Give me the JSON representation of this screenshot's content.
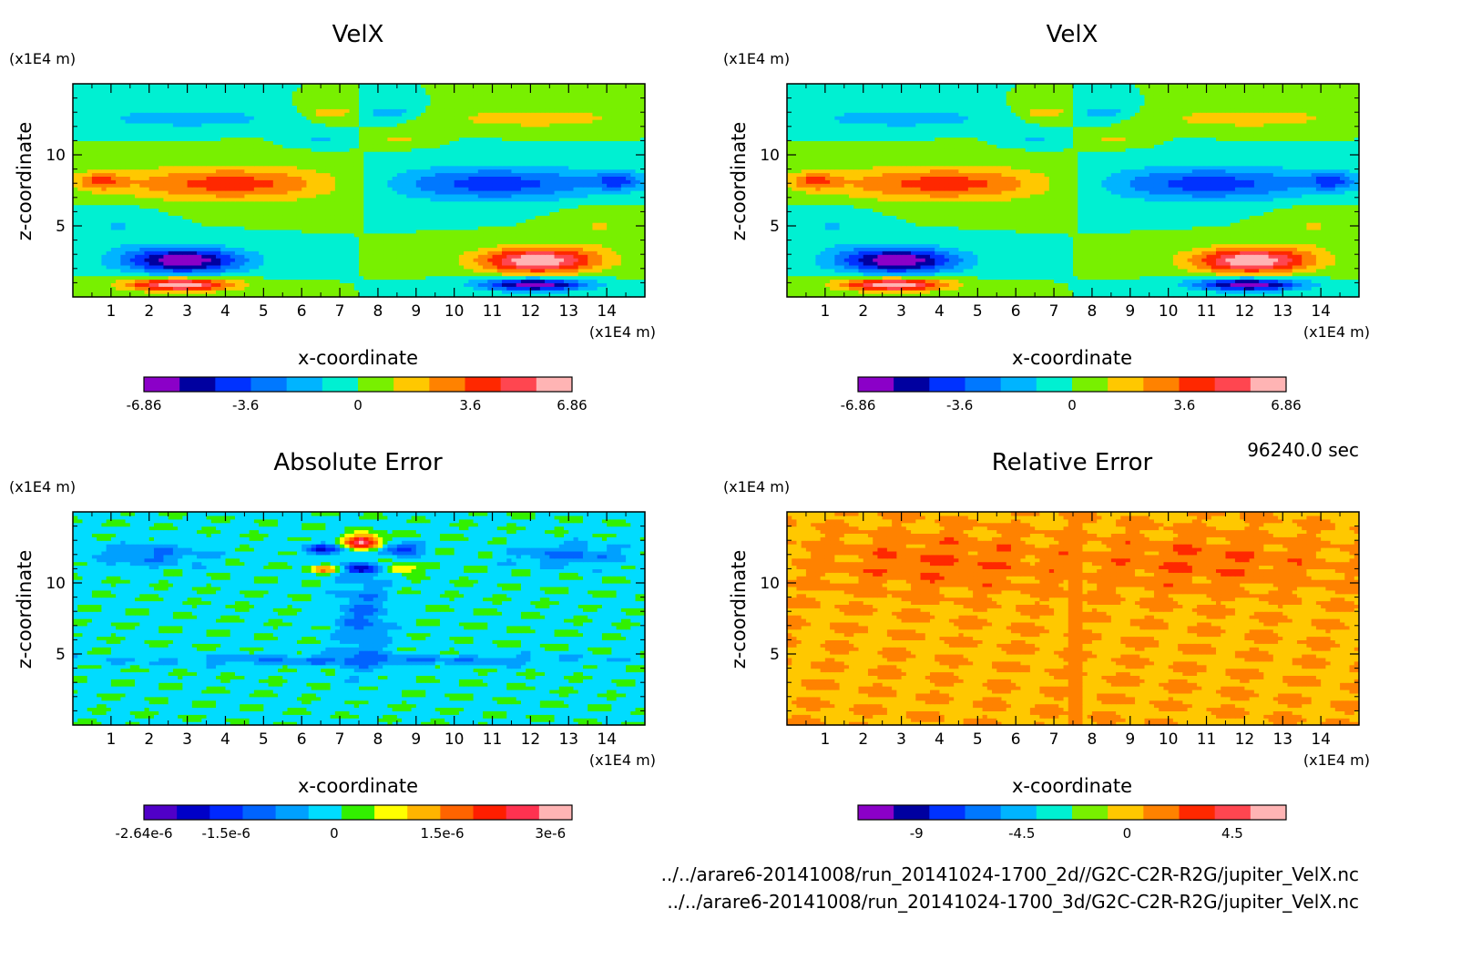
{
  "time_label": "96240.0 sec",
  "footer": {
    "line1": "../../arare6-20141008/run_20141024-1700_2d//G2C-C2R-R2G/jupiter_VelX.nc",
    "line2": "../../arare6-20141008/run_20141024-1700_3d/G2C-C2R-R2G/jupiter_VelX.nc"
  },
  "chart_data": [
    {
      "type": "heatmap",
      "title": "VelX",
      "xlabel": "x-coordinate",
      "ylabel": "z-coordinate",
      "x_unit": "(x1E4 m)",
      "y_unit": "(x1E4 m)",
      "xlim": [
        0,
        15
      ],
      "ylim": [
        0,
        15
      ],
      "x_ticks": [
        "1",
        "2",
        "3",
        "4",
        "5",
        "6",
        "7",
        "8",
        "9",
        "10",
        "11",
        "12",
        "13",
        "14"
      ],
      "y_ticks": [
        "5",
        "10"
      ],
      "colorbar": {
        "colors": [
          "#8b00c8",
          "#0000a0",
          "#0032ff",
          "#0078ff",
          "#00b4ff",
          "#00f0d2",
          "#78f000",
          "#ffc800",
          "#ff8200",
          "#ff2800",
          "#ff4650",
          "#ffb4b4"
        ],
        "labels": [
          "-6.86",
          "-3.6",
          "0",
          "3.6",
          "6.86"
        ]
      },
      "field": "velx"
    },
    {
      "type": "heatmap",
      "title": "VelX",
      "xlabel": "x-coordinate",
      "ylabel": "z-coordinate",
      "x_unit": "(x1E4 m)",
      "y_unit": "(x1E4 m)",
      "xlim": [
        0,
        15
      ],
      "ylim": [
        0,
        15
      ],
      "x_ticks": [
        "1",
        "2",
        "3",
        "4",
        "5",
        "6",
        "7",
        "8",
        "9",
        "10",
        "11",
        "12",
        "13",
        "14"
      ],
      "y_ticks": [
        "5",
        "10"
      ],
      "colorbar": {
        "colors": [
          "#8b00c8",
          "#0000a0",
          "#0032ff",
          "#0078ff",
          "#00b4ff",
          "#00f0d2",
          "#78f000",
          "#ffc800",
          "#ff8200",
          "#ff2800",
          "#ff4650",
          "#ffb4b4"
        ],
        "labels": [
          "-6.86",
          "-3.6",
          "0",
          "3.6",
          "6.86"
        ]
      },
      "field": "velx"
    },
    {
      "type": "heatmap",
      "title": "Absolute Error",
      "xlabel": "x-coordinate",
      "ylabel": "z-coordinate",
      "x_unit": "(x1E4 m)",
      "y_unit": "(x1E4 m)",
      "xlim": [
        0,
        15
      ],
      "ylim": [
        0,
        15
      ],
      "x_ticks": [
        "1",
        "2",
        "3",
        "4",
        "5",
        "6",
        "7",
        "8",
        "9",
        "10",
        "11",
        "12",
        "13",
        "14"
      ],
      "y_ticks": [
        "5",
        "10"
      ],
      "colorbar": {
        "colors": [
          "#5000c8",
          "#0000c8",
          "#0028ff",
          "#0064ff",
          "#00a0ff",
          "#00dcff",
          "#32f000",
          "#ffff00",
          "#ffb400",
          "#ff6400",
          "#ff1e00",
          "#ff3250",
          "#ffb4b4"
        ],
        "labels": [
          "-2.64e-6",
          "-1.5e-6",
          "0",
          "1.5e-6",
          "3e-6"
        ]
      },
      "field": "abs"
    },
    {
      "type": "heatmap",
      "title": "Relative Error",
      "xlabel": "x-coordinate",
      "ylabel": "z-coordinate",
      "x_unit": "(x1E4 m)",
      "y_unit": "(x1E4 m)",
      "xlim": [
        0,
        15
      ],
      "ylim": [
        0,
        15
      ],
      "x_ticks": [
        "1",
        "2",
        "3",
        "4",
        "5",
        "6",
        "7",
        "8",
        "9",
        "10",
        "11",
        "12",
        "13",
        "14"
      ],
      "y_ticks": [
        "5",
        "10"
      ],
      "colorbar": {
        "colors": [
          "#8b00c8",
          "#0000a0",
          "#0032ff",
          "#0078ff",
          "#00b4ff",
          "#00f0d2",
          "#78f000",
          "#ffc800",
          "#ff8200",
          "#ff2800",
          "#ff4650",
          "#ffb4b4"
        ],
        "labels": [
          "-9",
          "-4.5",
          "0",
          "4.5"
        ]
      },
      "field": "rel"
    }
  ]
}
